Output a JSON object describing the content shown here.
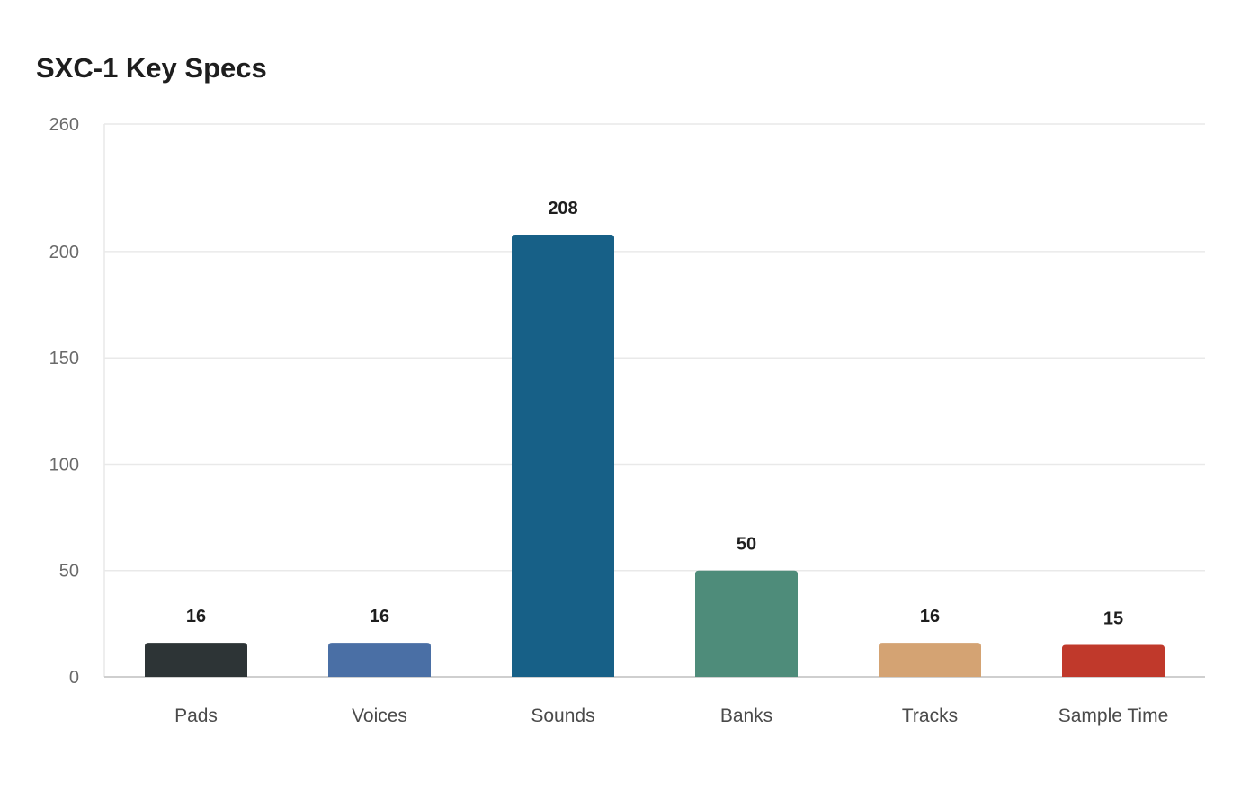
{
  "chart_data": {
    "type": "bar",
    "title": "SXC-1 Key Specs",
    "xlabel": "",
    "ylabel": "",
    "categories": [
      "Pads",
      "Voices",
      "Sounds",
      "Banks",
      "Tracks",
      "Sample Time"
    ],
    "values": [
      16,
      16,
      208,
      50,
      16,
      15
    ],
    "data_labels": [
      "16",
      "16",
      "208",
      "50",
      "16",
      "15"
    ],
    "ylim": [
      0,
      260
    ],
    "yticks": [
      0,
      50,
      100,
      150,
      200,
      260
    ],
    "grid": true,
    "legend": "none",
    "colors": [
      "#2d3436",
      "#4a6fa5",
      "#176087",
      "#4e8c7a",
      "#d4a373",
      "#c0392b"
    ],
    "gridline_color": "#e9e9e9",
    "axis_color": "#cfcfcf"
  }
}
